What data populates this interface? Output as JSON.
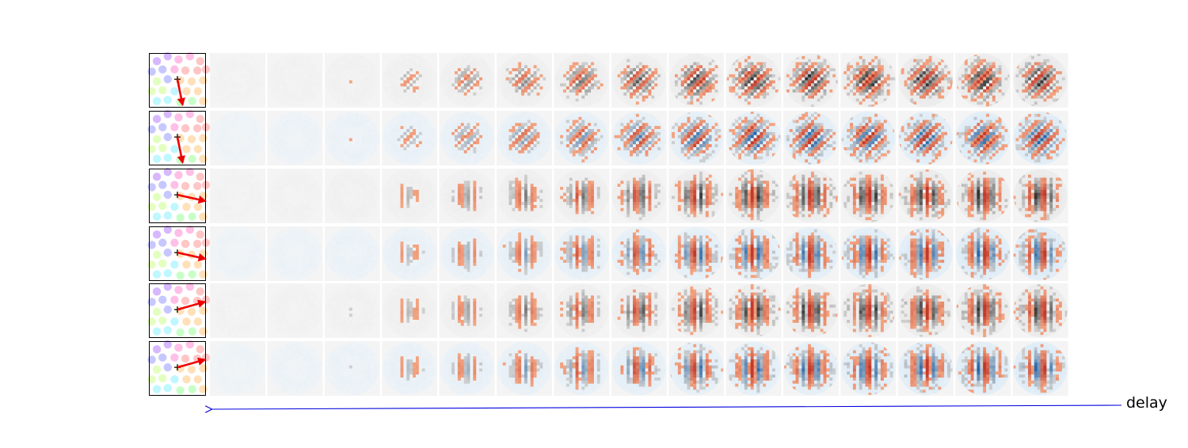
{
  "figure": {
    "delay_label": "delay",
    "arrow_color": "#0000dd",
    "rows": [
      {
        "colormap": "gray",
        "vector_angle_deg": 70
      },
      {
        "colormap": "blue",
        "vector_angle_deg": 70
      },
      {
        "colormap": "gray",
        "vector_angle_deg": 20
      },
      {
        "colormap": "blue",
        "vector_angle_deg": 20
      },
      {
        "colormap": "gray",
        "vector_angle_deg": -25
      },
      {
        "colormap": "blue",
        "vector_angle_deg": -25
      }
    ],
    "delay_steps": 15,
    "colors": {
      "positive": "#c0392b",
      "positive_light": "#f4a582",
      "negative_blue": "#2166ac",
      "negative_gray": "#2b2b2b",
      "vector": "#ee0000",
      "origin_marker": "#000000"
    }
  }
}
